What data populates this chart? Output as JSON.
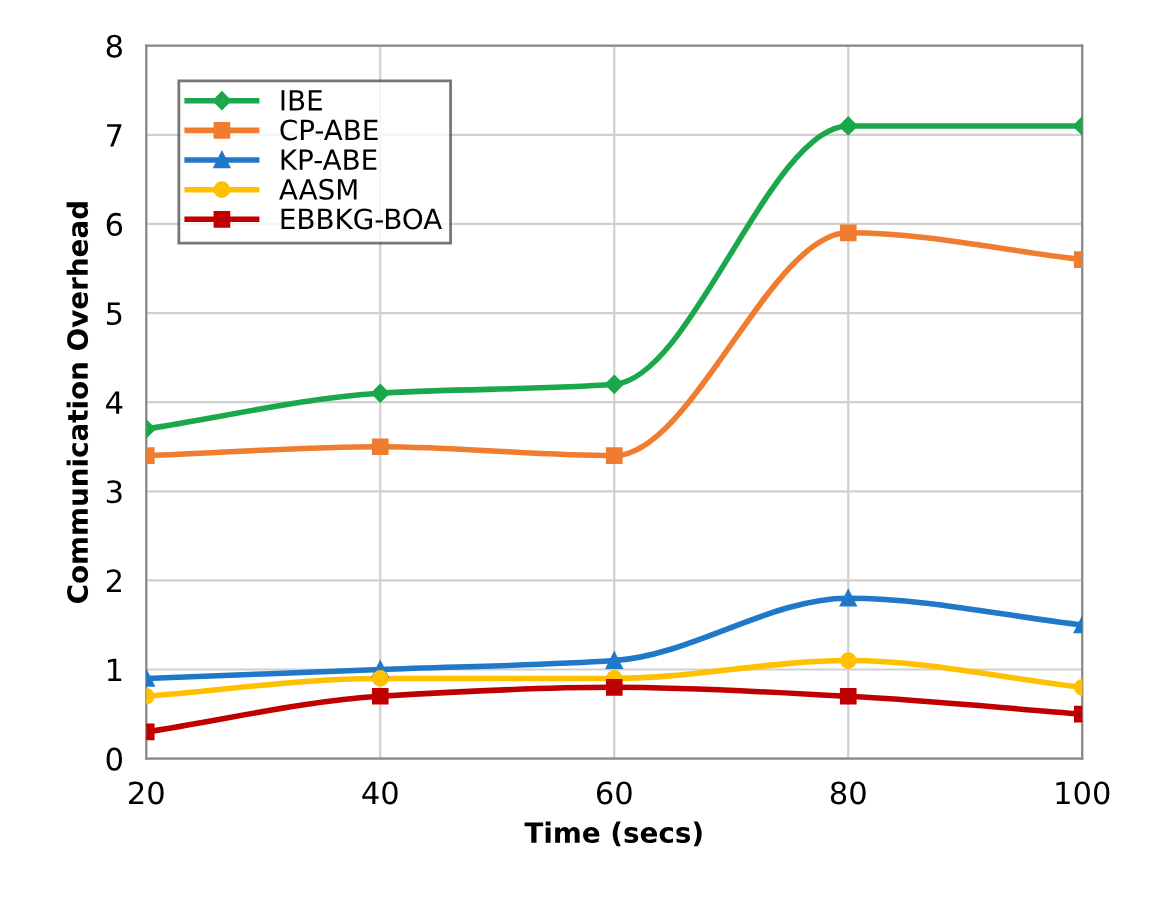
{
  "chart_data": {
    "type": "line",
    "xlabel": "Time (secs)",
    "ylabel": "Communication Overhead",
    "x": [
      20,
      40,
      60,
      80,
      100
    ],
    "xlim": [
      20,
      100
    ],
    "xticks": [
      20,
      40,
      60,
      80,
      100
    ],
    "ylim": [
      0,
      8
    ],
    "yticks": [
      0,
      1,
      2,
      3,
      4,
      5,
      6,
      7,
      8
    ],
    "grid": true,
    "legend": "top left",
    "line_style": "solid",
    "series": [
      {
        "name": "IBE",
        "color": "#1aa84a",
        "marker": "diamond",
        "values": [
          3.7,
          4.1,
          4.2,
          7.1,
          7.1
        ]
      },
      {
        "name": "CP-ABE",
        "color": "#f07c30",
        "marker": "square",
        "values": [
          3.4,
          3.5,
          3.4,
          5.9,
          5.6
        ]
      },
      {
        "name": "KP-ABE",
        "color": "#1f78c8",
        "marker": "triangle",
        "values": [
          0.9,
          1.0,
          1.1,
          1.8,
          1.5
        ]
      },
      {
        "name": "AASM",
        "color": "#ffc000",
        "marker": "circle",
        "values": [
          0.7,
          0.9,
          0.9,
          1.1,
          0.8
        ]
      },
      {
        "name": "EBBKG-BOA",
        "color": "#c00000",
        "marker": "square",
        "values": [
          0.3,
          0.7,
          0.8,
          0.7,
          0.5
        ]
      }
    ]
  }
}
